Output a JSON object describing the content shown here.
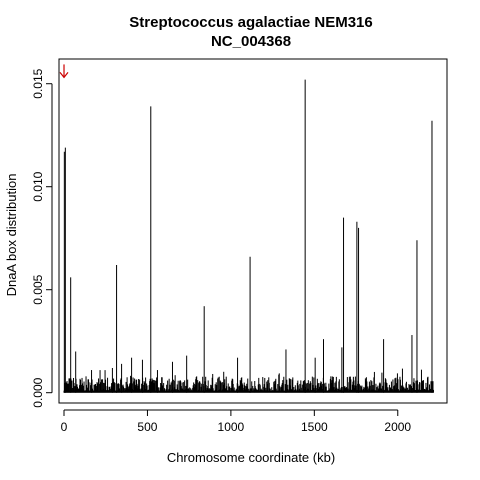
{
  "chart_data": {
    "type": "bar",
    "title": "Streptococcus agalactiae NEM316",
    "subtitle": "NC_004368",
    "xlabel": "Chromosome coordinate (kb)",
    "ylabel": "DnaA box distribution",
    "xlim": [
      -30,
      2295
    ],
    "ylim": [
      -0.0005,
      0.0162
    ],
    "x_ticks": [
      0,
      500,
      1000,
      1500,
      2000
    ],
    "x_tick_labels": [
      "0",
      "500",
      "1000",
      "1500",
      "2000"
    ],
    "y_ticks": [
      0.0,
      0.005,
      0.01,
      0.015
    ],
    "y_tick_labels": [
      "0.000",
      "0.005",
      "0.010",
      "0.015"
    ],
    "grid": false,
    "legend": "none",
    "bar_color": "#000000",
    "marker": {
      "x": 0,
      "y": 0.0155,
      "color": "#cc0000",
      "shape": "arrow-down"
    },
    "peaks": [
      {
        "x": 2,
        "y": 0.0117
      },
      {
        "x": 8,
        "y": 0.0119
      },
      {
        "x": 40,
        "y": 0.0056
      },
      {
        "x": 70,
        "y": 0.002
      },
      {
        "x": 165,
        "y": 0.0011
      },
      {
        "x": 290,
        "y": 0.0012
      },
      {
        "x": 315,
        "y": 0.0062
      },
      {
        "x": 345,
        "y": 0.0014
      },
      {
        "x": 405,
        "y": 0.0017
      },
      {
        "x": 470,
        "y": 0.0016
      },
      {
        "x": 520,
        "y": 0.0139
      },
      {
        "x": 560,
        "y": 0.0011
      },
      {
        "x": 650,
        "y": 0.0015
      },
      {
        "x": 735,
        "y": 0.0018
      },
      {
        "x": 840,
        "y": 0.0042
      },
      {
        "x": 1040,
        "y": 0.0017
      },
      {
        "x": 1115,
        "y": 0.0066
      },
      {
        "x": 1330,
        "y": 0.0021
      },
      {
        "x": 1445,
        "y": 0.0152
      },
      {
        "x": 1505,
        "y": 0.0017
      },
      {
        "x": 1555,
        "y": 0.0026
      },
      {
        "x": 1665,
        "y": 0.0022
      },
      {
        "x": 1675,
        "y": 0.0085
      },
      {
        "x": 1755,
        "y": 0.0083
      },
      {
        "x": 1765,
        "y": 0.008
      },
      {
        "x": 1915,
        "y": 0.0026
      },
      {
        "x": 2085,
        "y": 0.0028
      },
      {
        "x": 2115,
        "y": 0.0074
      },
      {
        "x": 2205,
        "y": 0.0132
      }
    ]
  }
}
